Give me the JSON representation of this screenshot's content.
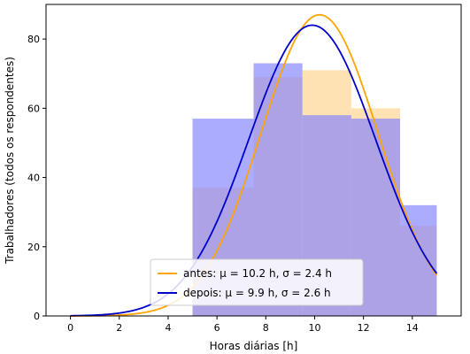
{
  "chart_data": {
    "type": "bar",
    "xlabel": "Horas diárias [h]",
    "ylabel": "Trabalhadores (todos os respondentes)",
    "xlim": [
      -1,
      16
    ],
    "ylim": [
      0,
      90
    ],
    "xticks": [
      0,
      2,
      4,
      6,
      8,
      10,
      12,
      14
    ],
    "yticks": [
      0,
      20,
      40,
      60,
      80
    ],
    "bin_edges": [
      5,
      7.5,
      9.5,
      11.5,
      13.5,
      15
    ],
    "series": [
      {
        "name": "antes",
        "color": "#ffa500",
        "bar_color": "#ffe0b0",
        "values": [
          37,
          69,
          71,
          60,
          26
        ],
        "mu": 10.2,
        "sigma": 2.4,
        "legend_label": "antes: μ = 10.2 h, σ = 2.4 h"
      },
      {
        "name": "depois",
        "color": "#0000cc",
        "bar_color": "#7f7fff",
        "values": [
          57,
          73,
          58,
          57,
          32
        ],
        "mu": 9.9,
        "sigma": 2.6,
        "legend_label": "depois: μ = 9.9 h, σ = 2.6 h"
      }
    ],
    "curves": {
      "x_range": [
        0,
        15
      ],
      "antes_peak": 87,
      "depois_peak": 84
    },
    "legend_position": "lower-center"
  }
}
